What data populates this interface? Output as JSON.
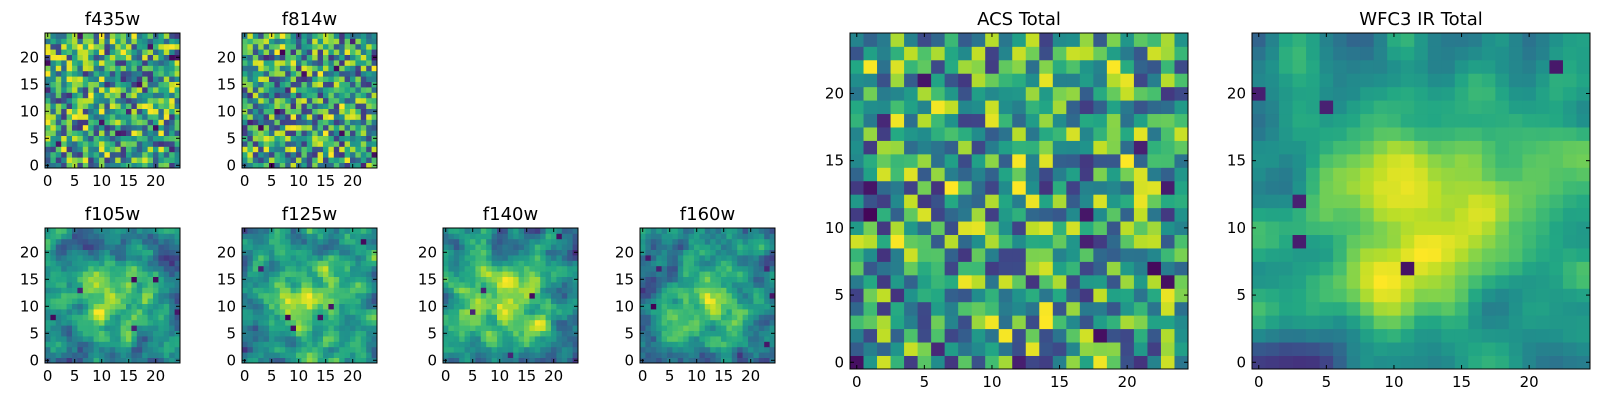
{
  "chart_data": [
    {
      "type": "heatmap",
      "id": "f435w",
      "title": "f435w",
      "seed": 11,
      "smooth": 0,
      "grid_size": [
        25,
        25
      ],
      "xlim": [
        -0.5,
        24.5
      ],
      "ylim": [
        -0.5,
        24.5
      ],
      "xticks": [
        0,
        5,
        10,
        15,
        20
      ],
      "xtick_labels": [
        "0",
        "5",
        "10",
        "15",
        "20"
      ],
      "yticks": [
        0,
        5,
        10,
        15,
        20
      ],
      "ytick_labels": [
        "0",
        "5",
        "10",
        "15",
        "20"
      ],
      "colormap": "viridis"
    },
    {
      "type": "heatmap",
      "id": "f814w",
      "title": "f814w",
      "seed": 23,
      "smooth": 0,
      "grid_size": [
        25,
        25
      ],
      "xlim": [
        -0.5,
        24.5
      ],
      "ylim": [
        -0.5,
        24.5
      ],
      "xticks": [
        0,
        5,
        10,
        15,
        20
      ],
      "xtick_labels": [
        "0",
        "5",
        "10",
        "15",
        "20"
      ],
      "yticks": [
        0,
        5,
        10,
        15,
        20
      ],
      "ytick_labels": [
        "0",
        "5",
        "10",
        "15",
        "20"
      ],
      "colormap": "viridis"
    },
    {
      "type": "heatmap",
      "id": "f105w",
      "title": "f105w",
      "seed": 37,
      "smooth": 1,
      "grid_size": [
        25,
        25
      ],
      "xlim": [
        -0.5,
        24.5
      ],
      "ylim": [
        -0.5,
        24.5
      ],
      "xticks": [
        0,
        5,
        10,
        15,
        20
      ],
      "xtick_labels": [
        "0",
        "5",
        "10",
        "15",
        "20"
      ],
      "yticks": [
        0,
        5,
        10,
        15,
        20
      ],
      "ytick_labels": [
        "0",
        "5",
        "10",
        "15",
        "20"
      ],
      "colormap": "viridis"
    },
    {
      "type": "heatmap",
      "id": "f125w",
      "title": "f125w",
      "seed": 41,
      "smooth": 1,
      "grid_size": [
        25,
        25
      ],
      "xlim": [
        -0.5,
        24.5
      ],
      "ylim": [
        -0.5,
        24.5
      ],
      "xticks": [
        0,
        5,
        10,
        15,
        20
      ],
      "xtick_labels": [
        "0",
        "5",
        "10",
        "15",
        "20"
      ],
      "yticks": [
        0,
        5,
        10,
        15,
        20
      ],
      "ytick_labels": [
        "0",
        "5",
        "10",
        "15",
        "20"
      ],
      "colormap": "viridis"
    },
    {
      "type": "heatmap",
      "id": "f140w",
      "title": "f140w",
      "seed": 53,
      "smooth": 1,
      "grid_size": [
        25,
        25
      ],
      "xlim": [
        -0.5,
        24.5
      ],
      "ylim": [
        -0.5,
        24.5
      ],
      "xticks": [
        0,
        5,
        10,
        15,
        20
      ],
      "xtick_labels": [
        "0",
        "5",
        "10",
        "15",
        "20"
      ],
      "yticks": [
        0,
        5,
        10,
        15,
        20
      ],
      "ytick_labels": [
        "0",
        "5",
        "10",
        "15",
        "20"
      ],
      "colormap": "viridis"
    },
    {
      "type": "heatmap",
      "id": "f160w",
      "title": "f160w",
      "seed": 67,
      "smooth": 1,
      "grid_size": [
        25,
        25
      ],
      "xlim": [
        -0.5,
        24.5
      ],
      "ylim": [
        -0.5,
        24.5
      ],
      "xticks": [
        0,
        5,
        10,
        15,
        20
      ],
      "xtick_labels": [
        "0",
        "5",
        "10",
        "15",
        "20"
      ],
      "yticks": [
        0,
        5,
        10,
        15,
        20
      ],
      "ytick_labels": [
        "0",
        "5",
        "10",
        "15",
        "20"
      ],
      "colormap": "viridis"
    },
    {
      "type": "heatmap",
      "id": "acs-total",
      "title": "ACS Total",
      "seed": 79,
      "smooth": 0,
      "grid_size": [
        25,
        25
      ],
      "xlim": [
        -0.5,
        24.5
      ],
      "ylim": [
        -0.5,
        24.5
      ],
      "xticks": [
        0,
        5,
        10,
        15,
        20
      ],
      "xtick_labels": [
        "0",
        "5",
        "10",
        "15",
        "20"
      ],
      "yticks": [
        0,
        5,
        10,
        15,
        20
      ],
      "ytick_labels": [
        "0",
        "5",
        "10",
        "15",
        "20"
      ],
      "colormap": "viridis"
    },
    {
      "type": "heatmap",
      "id": "wfc3-ir-total",
      "title": "WFC3 IR Total",
      "seed": 97,
      "smooth": 2,
      "grid_size": [
        25,
        25
      ],
      "xlim": [
        -0.5,
        24.5
      ],
      "ylim": [
        -0.5,
        24.5
      ],
      "xticks": [
        0,
        5,
        10,
        15,
        20
      ],
      "xtick_labels": [
        "0",
        "5",
        "10",
        "15",
        "20"
      ],
      "yticks": [
        0,
        5,
        10,
        15,
        20
      ],
      "ytick_labels": [
        "0",
        "5",
        "10",
        "15",
        "20"
      ],
      "colormap": "viridis"
    }
  ]
}
